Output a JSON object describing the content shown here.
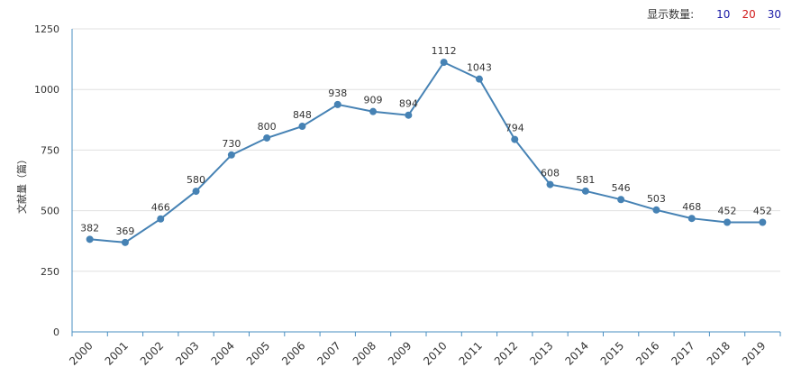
{
  "controls": {
    "label": "显示数量:",
    "options": [
      "10",
      "20",
      "30"
    ]
  },
  "colors": {
    "series": "#4682b4",
    "axis": "#4a8fc2",
    "grid": "#e0e0e0"
  },
  "chart_data": {
    "type": "line",
    "title": "",
    "xlabel": "",
    "ylabel": "文献量（篇）",
    "x": [
      "2000",
      "2001",
      "2002",
      "2003",
      "2004",
      "2005",
      "2006",
      "2007",
      "2008",
      "2009",
      "2010",
      "2011",
      "2012",
      "2013",
      "2014",
      "2015",
      "2016",
      "2017",
      "2018",
      "2019"
    ],
    "series": [
      {
        "values": [
          382,
          369,
          466,
          580,
          730,
          800,
          848,
          938,
          909,
          894,
          1112,
          1043,
          794,
          608,
          581,
          546,
          503,
          468,
          452,
          452
        ]
      }
    ],
    "ylim": [
      0,
      1250
    ],
    "yticks": [
      0,
      250,
      500,
      750,
      1000,
      1250
    ],
    "grid": true,
    "data_labels": true
  }
}
